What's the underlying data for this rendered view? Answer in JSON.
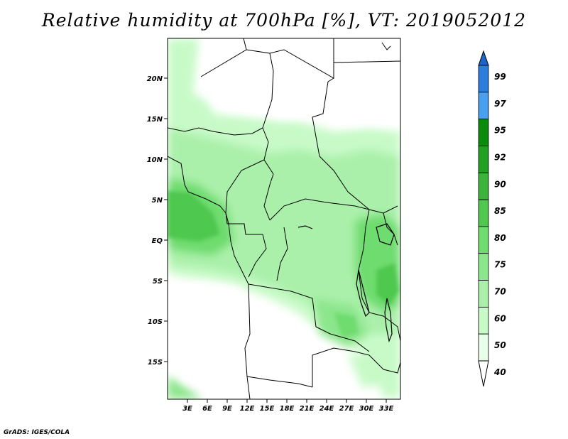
{
  "title": "Relative humidity at 700hPa [%], VT: 2019052012",
  "credit": "GrADS: IGES/COLA",
  "lat_labels": [
    "20N",
    "15N",
    "10N",
    "5N",
    "EQ",
    "5S",
    "10S",
    "15S"
  ],
  "lon_labels": [
    "3E",
    "6E",
    "9E",
    "12E",
    "15E",
    "18E",
    "21E",
    "24E",
    "27E",
    "30E",
    "33E"
  ],
  "colorbar": {
    "labels": [
      "99",
      "97",
      "95",
      "92",
      "90",
      "85",
      "80",
      "75",
      "70",
      "60",
      "50",
      "40"
    ],
    "colors": [
      "#1e64c8",
      "#2d7ddc",
      "#4aa0f0",
      "#0a8c0a",
      "#22a022",
      "#3cb43c",
      "#50c850",
      "#6edc6e",
      "#8ce68c",
      "#aaf0aa",
      "#c8fac8",
      "#e6ffe6",
      "#ffffff"
    ]
  }
}
